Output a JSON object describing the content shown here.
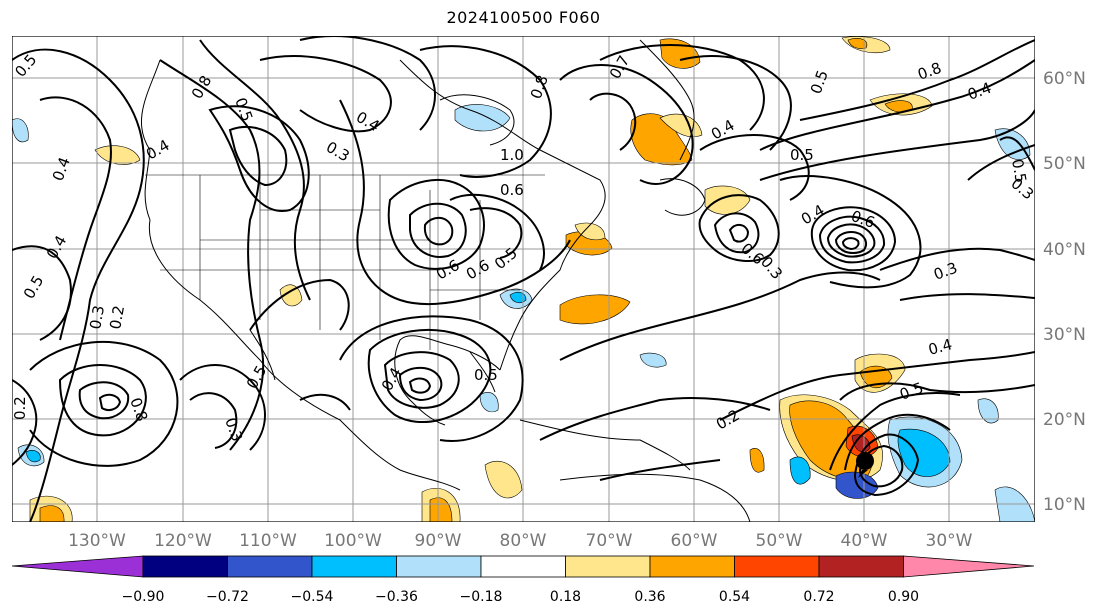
{
  "title": "2024100500 F060",
  "map": {
    "lon_range": [
      -140,
      -20
    ],
    "lat_range": [
      8,
      65
    ],
    "lon_ticks": [
      "130°W",
      "120°W",
      "110°W",
      "100°W",
      "90°W",
      "80°W",
      "70°W",
      "60°W",
      "50°W",
      "40°W",
      "30°W"
    ],
    "lat_ticks": [
      "60°N",
      "50°N",
      "40°N",
      "30°N",
      "20°N",
      "10°N"
    ],
    "contour_labels": [
      "0.5",
      "0.5",
      "0.4",
      "0.4",
      "0.8",
      "0.4",
      "0.3",
      "0.3",
      "0.4",
      "1.0",
      "0.6",
      "0.8",
      "0.7",
      "0.5",
      "0.4",
      "0.8",
      "0.4",
      "0.6",
      "0.5",
      "0.2",
      "0.2",
      "0.8",
      "0.3",
      "0.6",
      "0.5",
      "0.4",
      "0.5",
      "0.3",
      "0.3",
      "0.4",
      "0.5",
      "0.2",
      "0.6",
      "0.5",
      "0.3",
      "0.4",
      "0.6",
      "0.5",
      "0.5"
    ]
  },
  "colorbar": {
    "labels": [
      "−0.90",
      "−0.72",
      "−0.54",
      "−0.36",
      "−0.18",
      "0.18",
      "0.36",
      "0.54",
      "0.72",
      "0.90"
    ],
    "colors": [
      "#9b30d6",
      "#000080",
      "#3355cc",
      "#00bfff",
      "#b0e0fa",
      "#ffffff",
      "#ffe68c",
      "#ffa500",
      "#ff4500",
      "#b22222",
      "#ff88aa"
    ]
  },
  "legend_symbols": {
    "storm": "black-dot"
  }
}
